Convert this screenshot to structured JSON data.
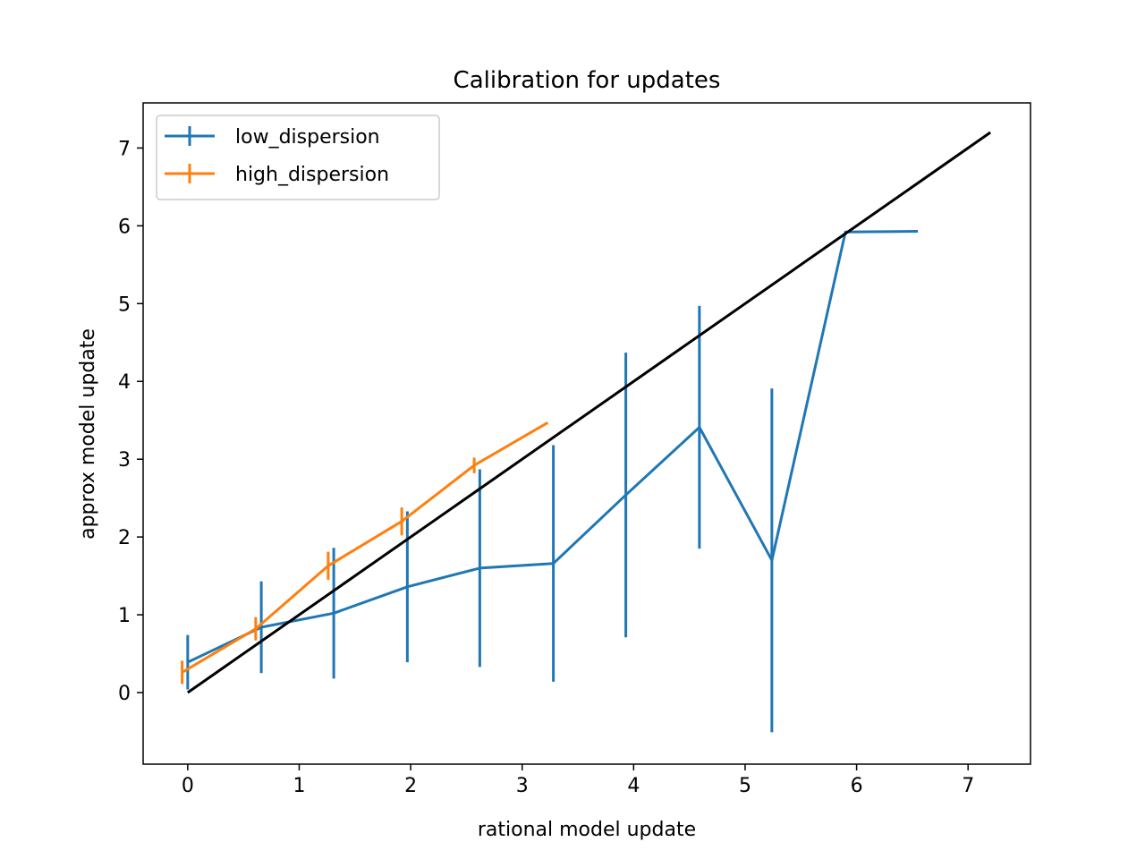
{
  "chart_data": {
    "type": "line",
    "title": "Calibration for updates",
    "xlabel": "rational model update",
    "ylabel": "approx model update",
    "xlim": [
      -0.4,
      7.56
    ],
    "ylim": [
      -0.92,
      7.58
    ],
    "xticks": [
      0,
      1,
      2,
      3,
      4,
      5,
      6,
      7
    ],
    "yticks": [
      0,
      1,
      2,
      3,
      4,
      5,
      6,
      7
    ],
    "grid": false,
    "legend_position": "upper-left",
    "reference_line": {
      "x": [
        0,
        7.2
      ],
      "y": [
        0,
        7.2
      ],
      "color": "#000000"
    },
    "series": [
      {
        "name": "low_dispersion",
        "color": "#1f77b4",
        "x": [
          0.0,
          0.66,
          1.31,
          1.97,
          2.62,
          3.28,
          3.93,
          4.59,
          5.24,
          5.9,
          6.55
        ],
        "y": [
          0.39,
          0.84,
          1.02,
          1.36,
          1.6,
          1.66,
          2.54,
          3.41,
          1.7,
          5.92,
          5.93
        ],
        "err": [
          0.35,
          0.59,
          0.84,
          0.97,
          1.27,
          1.52,
          1.83,
          1.56,
          2.21,
          0.0,
          0.0
        ]
      },
      {
        "name": "high_dispersion",
        "color": "#ff7f0e",
        "x": [
          -0.05,
          0.61,
          1.26,
          1.92,
          2.57,
          3.23
        ],
        "y": [
          0.26,
          0.82,
          1.63,
          2.2,
          2.92,
          3.47
        ],
        "err": [
          0.15,
          0.15,
          0.18,
          0.18,
          0.1,
          0.0
        ]
      }
    ]
  }
}
